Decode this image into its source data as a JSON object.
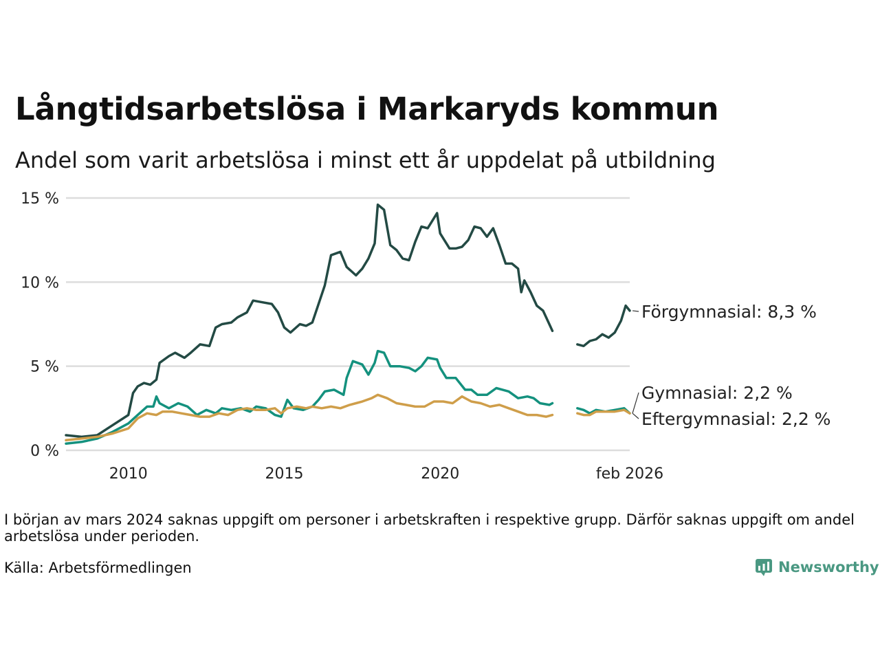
{
  "title": "Långtidsarbetslösa i Markaryds kommun",
  "subtitle": "Andel som varit arbetslösa i minst ett år uppdelat på utbildning",
  "note": "I början av mars 2024 saknas uppgift om personer i arbetskraften i respektive grupp. Därför saknas uppgift om andel arbetslösa under perioden.",
  "source": "Källa: Arbetsförmedlingen",
  "brand": "Newsworthy",
  "colors": {
    "forgymnasial": "#234a44",
    "gymnasial": "#14917e",
    "eftergymnasial": "#cf9e4a",
    "grid": "#dddddd",
    "brand": "#4a9882"
  },
  "chart_data": {
    "type": "line",
    "title": "Långtidsarbetslösa i Markaryds kommun",
    "xlabel": "",
    "ylabel": "",
    "xlim": [
      2008.0,
      2026.08
    ],
    "ylim": [
      0,
      15
    ],
    "y_ticks": [
      0,
      5,
      10,
      15
    ],
    "y_tick_labels": [
      "0 %",
      "5 %",
      "10 %",
      "15 %"
    ],
    "x_ticks": [
      2010,
      2015,
      2020,
      2026.08
    ],
    "x_tick_labels": [
      "2010",
      "2015",
      "2020",
      "feb 2026"
    ],
    "gap": [
      2024.17,
      2024.42
    ],
    "series": [
      {
        "name": "Förgymnasial",
        "label": "Förgymnasial: 8,3 %",
        "color": "#234a44",
        "points": [
          [
            2008.0,
            0.9
          ],
          [
            2008.5,
            0.8
          ],
          [
            2009.0,
            0.9
          ],
          [
            2009.5,
            1.5
          ],
          [
            2010.0,
            2.1
          ],
          [
            2010.15,
            3.4
          ],
          [
            2010.3,
            3.8
          ],
          [
            2010.5,
            4.0
          ],
          [
            2010.7,
            3.9
          ],
          [
            2010.9,
            4.2
          ],
          [
            2011.0,
            5.2
          ],
          [
            2011.3,
            5.6
          ],
          [
            2011.5,
            5.8
          ],
          [
            2011.8,
            5.5
          ],
          [
            2012.0,
            5.8
          ],
          [
            2012.3,
            6.3
          ],
          [
            2012.6,
            6.2
          ],
          [
            2012.8,
            7.3
          ],
          [
            2013.0,
            7.5
          ],
          [
            2013.3,
            7.6
          ],
          [
            2013.5,
            7.9
          ],
          [
            2013.8,
            8.2
          ],
          [
            2014.0,
            8.9
          ],
          [
            2014.3,
            8.8
          ],
          [
            2014.6,
            8.7
          ],
          [
            2014.8,
            8.2
          ],
          [
            2015.0,
            7.3
          ],
          [
            2015.2,
            7.0
          ],
          [
            2015.5,
            7.5
          ],
          [
            2015.7,
            7.4
          ],
          [
            2015.9,
            7.6
          ],
          [
            2016.1,
            8.7
          ],
          [
            2016.3,
            9.8
          ],
          [
            2016.5,
            11.6
          ],
          [
            2016.8,
            11.8
          ],
          [
            2017.0,
            10.9
          ],
          [
            2017.3,
            10.4
          ],
          [
            2017.5,
            10.8
          ],
          [
            2017.7,
            11.4
          ],
          [
            2017.9,
            12.3
          ],
          [
            2018.0,
            14.6
          ],
          [
            2018.2,
            14.3
          ],
          [
            2018.4,
            12.2
          ],
          [
            2018.6,
            11.9
          ],
          [
            2018.8,
            11.4
          ],
          [
            2019.0,
            11.3
          ],
          [
            2019.2,
            12.4
          ],
          [
            2019.4,
            13.3
          ],
          [
            2019.6,
            13.2
          ],
          [
            2019.9,
            14.1
          ],
          [
            2020.0,
            12.9
          ],
          [
            2020.3,
            12.0
          ],
          [
            2020.5,
            12.0
          ],
          [
            2020.7,
            12.1
          ],
          [
            2020.9,
            12.5
          ],
          [
            2021.1,
            13.3
          ],
          [
            2021.3,
            13.2
          ],
          [
            2021.5,
            12.7
          ],
          [
            2021.7,
            13.2
          ],
          [
            2021.9,
            12.2
          ],
          [
            2022.1,
            11.1
          ],
          [
            2022.3,
            11.1
          ],
          [
            2022.5,
            10.8
          ],
          [
            2022.6,
            9.4
          ],
          [
            2022.7,
            10.1
          ],
          [
            2022.9,
            9.4
          ],
          [
            2023.1,
            8.6
          ],
          [
            2023.3,
            8.3
          ],
          [
            2023.5,
            7.5
          ],
          [
            2023.6,
            7.1
          ],
          [
            2024.0,
            null
          ],
          [
            2024.4,
            6.3
          ],
          [
            2024.6,
            6.2
          ],
          [
            2024.8,
            6.5
          ],
          [
            2025.0,
            6.6
          ],
          [
            2025.2,
            6.9
          ],
          [
            2025.4,
            6.7
          ],
          [
            2025.6,
            7.0
          ],
          [
            2025.8,
            7.7
          ],
          [
            2025.95,
            8.6
          ],
          [
            2026.08,
            8.3
          ]
        ]
      },
      {
        "name": "Gymnasial",
        "label": "Gymnasial: 2,2 %",
        "color": "#14917e",
        "points": [
          [
            2008.0,
            0.4
          ],
          [
            2008.5,
            0.5
          ],
          [
            2009.0,
            0.7
          ],
          [
            2009.5,
            1.1
          ],
          [
            2010.0,
            1.6
          ],
          [
            2010.3,
            2.1
          ],
          [
            2010.6,
            2.6
          ],
          [
            2010.8,
            2.6
          ],
          [
            2010.9,
            3.2
          ],
          [
            2011.0,
            2.8
          ],
          [
            2011.3,
            2.5
          ],
          [
            2011.6,
            2.8
          ],
          [
            2011.9,
            2.6
          ],
          [
            2012.2,
            2.1
          ],
          [
            2012.5,
            2.4
          ],
          [
            2012.8,
            2.2
          ],
          [
            2013.0,
            2.5
          ],
          [
            2013.3,
            2.4
          ],
          [
            2013.6,
            2.5
          ],
          [
            2013.9,
            2.3
          ],
          [
            2014.1,
            2.6
          ],
          [
            2014.4,
            2.5
          ],
          [
            2014.7,
            2.1
          ],
          [
            2014.9,
            2.0
          ],
          [
            2015.1,
            3.0
          ],
          [
            2015.3,
            2.5
          ],
          [
            2015.6,
            2.4
          ],
          [
            2015.9,
            2.6
          ],
          [
            2016.1,
            3.0
          ],
          [
            2016.3,
            3.5
          ],
          [
            2016.6,
            3.6
          ],
          [
            2016.9,
            3.3
          ],
          [
            2017.0,
            4.3
          ],
          [
            2017.2,
            5.3
          ],
          [
            2017.5,
            5.1
          ],
          [
            2017.7,
            4.5
          ],
          [
            2017.9,
            5.2
          ],
          [
            2018.0,
            5.9
          ],
          [
            2018.2,
            5.8
          ],
          [
            2018.4,
            5.0
          ],
          [
            2018.7,
            5.0
          ],
          [
            2019.0,
            4.9
          ],
          [
            2019.2,
            4.7
          ],
          [
            2019.4,
            5.0
          ],
          [
            2019.6,
            5.5
          ],
          [
            2019.9,
            5.4
          ],
          [
            2020.0,
            4.9
          ],
          [
            2020.2,
            4.3
          ],
          [
            2020.5,
            4.3
          ],
          [
            2020.8,
            3.6
          ],
          [
            2021.0,
            3.6
          ],
          [
            2021.2,
            3.3
          ],
          [
            2021.5,
            3.3
          ],
          [
            2021.8,
            3.7
          ],
          [
            2022.0,
            3.6
          ],
          [
            2022.2,
            3.5
          ],
          [
            2022.5,
            3.1
          ],
          [
            2022.8,
            3.2
          ],
          [
            2023.0,
            3.1
          ],
          [
            2023.2,
            2.8
          ],
          [
            2023.5,
            2.7
          ],
          [
            2023.6,
            2.8
          ],
          [
            2024.0,
            null
          ],
          [
            2024.4,
            2.5
          ],
          [
            2024.6,
            2.4
          ],
          [
            2024.8,
            2.2
          ],
          [
            2025.0,
            2.4
          ],
          [
            2025.3,
            2.3
          ],
          [
            2025.6,
            2.4
          ],
          [
            2025.9,
            2.5
          ],
          [
            2026.08,
            2.2
          ]
        ]
      },
      {
        "name": "Eftergymnasial",
        "label": "Eftergymnasial: 2,2 %",
        "color": "#cf9e4a",
        "points": [
          [
            2008.0,
            0.6
          ],
          [
            2008.5,
            0.7
          ],
          [
            2009.0,
            0.8
          ],
          [
            2009.5,
            1.0
          ],
          [
            2010.0,
            1.3
          ],
          [
            2010.3,
            1.9
          ],
          [
            2010.6,
            2.2
          ],
          [
            2010.9,
            2.1
          ],
          [
            2011.1,
            2.3
          ],
          [
            2011.4,
            2.3
          ],
          [
            2011.7,
            2.2
          ],
          [
            2012.0,
            2.1
          ],
          [
            2012.3,
            2.0
          ],
          [
            2012.6,
            2.0
          ],
          [
            2012.9,
            2.2
          ],
          [
            2013.2,
            2.1
          ],
          [
            2013.5,
            2.4
          ],
          [
            2013.8,
            2.5
          ],
          [
            2014.1,
            2.4
          ],
          [
            2014.4,
            2.4
          ],
          [
            2014.7,
            2.5
          ],
          [
            2014.9,
            2.2
          ],
          [
            2015.1,
            2.5
          ],
          [
            2015.4,
            2.6
          ],
          [
            2015.7,
            2.5
          ],
          [
            2015.9,
            2.6
          ],
          [
            2016.2,
            2.5
          ],
          [
            2016.5,
            2.6
          ],
          [
            2016.8,
            2.5
          ],
          [
            2017.1,
            2.7
          ],
          [
            2017.3,
            2.8
          ],
          [
            2017.5,
            2.9
          ],
          [
            2017.8,
            3.1
          ],
          [
            2018.0,
            3.3
          ],
          [
            2018.3,
            3.1
          ],
          [
            2018.6,
            2.8
          ],
          [
            2018.9,
            2.7
          ],
          [
            2019.2,
            2.6
          ],
          [
            2019.5,
            2.6
          ],
          [
            2019.8,
            2.9
          ],
          [
            2020.1,
            2.9
          ],
          [
            2020.4,
            2.8
          ],
          [
            2020.7,
            3.2
          ],
          [
            2021.0,
            2.9
          ],
          [
            2021.3,
            2.8
          ],
          [
            2021.6,
            2.6
          ],
          [
            2021.9,
            2.7
          ],
          [
            2022.2,
            2.5
          ],
          [
            2022.5,
            2.3
          ],
          [
            2022.8,
            2.1
          ],
          [
            2023.1,
            2.1
          ],
          [
            2023.4,
            2.0
          ],
          [
            2023.6,
            2.1
          ],
          [
            2024.0,
            null
          ],
          [
            2024.4,
            2.2
          ],
          [
            2024.6,
            2.1
          ],
          [
            2024.8,
            2.1
          ],
          [
            2025.0,
            2.3
          ],
          [
            2025.3,
            2.3
          ],
          [
            2025.6,
            2.3
          ],
          [
            2025.9,
            2.4
          ],
          [
            2026.08,
            2.2
          ]
        ]
      }
    ]
  }
}
